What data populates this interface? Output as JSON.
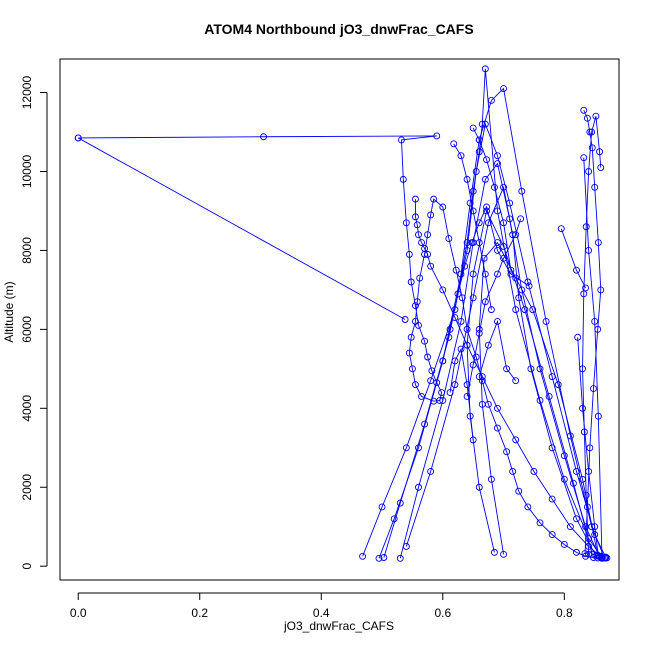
{
  "chart_data": {
    "type": "line",
    "title": "ATOM4 Northbound jO3_dnwFrac_CAFS",
    "xlabel": "jO3_dnwFrac_CAFS",
    "ylabel": "Altitude (m)",
    "xlim": [
      -0.03,
      0.89
    ],
    "ylim": [
      -350,
      12850
    ],
    "xticks": [
      0.0,
      0.2,
      0.4,
      0.6,
      0.8
    ],
    "xtick_labels": [
      "0.0",
      "0.2",
      "0.4",
      "0.6",
      "0.8"
    ],
    "yticks": [
      0,
      2000,
      4000,
      6000,
      8000,
      10000,
      12000
    ],
    "ytick_labels": [
      "0",
      "2000",
      "4000",
      "6000",
      "8000",
      "10000",
      "12000"
    ],
    "grid": false,
    "line_color": "#0000ff",
    "marker": "open-circle",
    "series": [
      {
        "x": [
          0.0,
          0.305,
          0.59,
          0.532,
          0.535,
          0.54,
          0.545,
          0.548,
          0.555,
          0.56,
          0.57,
          0.575,
          0.582,
          0.59,
          0.598,
          0.595,
          0.585,
          0.565,
          0.555,
          0.55,
          0.545,
          0.548,
          0.555,
          0.558,
          0.562,
          0.57,
          0.575,
          0.58,
          0.585,
          0.6,
          0.61,
          0.622,
          0.632,
          0.64,
          0.655,
          0.665,
          0.675,
          0.69,
          0.705,
          0.715,
          0.725,
          0.74,
          0.76,
          0.78,
          0.8,
          0.82,
          0.835,
          0.848,
          0.855,
          0.862,
          0.87
        ],
        "y": [
          10850,
          10880,
          10900,
          10800,
          9800,
          8700,
          7900,
          7200,
          6600,
          6100,
          5700,
          5300,
          4950,
          4650,
          4400,
          4200,
          4180,
          4300,
          4600,
          5000,
          5400,
          5800,
          6200,
          6700,
          7300,
          7900,
          8400,
          8900,
          9300,
          9100,
          8300,
          7500,
          6800,
          6000,
          5300,
          4700,
          4100,
          3500,
          2900,
          2400,
          1900,
          1500,
          1100,
          800,
          550,
          350,
          250,
          220,
          210,
          205,
          210
        ]
      },
      {
        "x": [
          0.0,
          0.538
        ],
        "y": [
          10850,
          6250
        ]
      },
      {
        "x": [
          0.555,
          0.555,
          0.558,
          0.56,
          0.565,
          0.57,
          0.575,
          0.58,
          0.6,
          0.62,
          0.64,
          0.665,
          0.69,
          0.72,
          0.75,
          0.78,
          0.81,
          0.84,
          0.86,
          0.868
        ],
        "y": [
          9300,
          8850,
          8650,
          8400,
          8200,
          8050,
          7900,
          7600,
          7000,
          6300,
          5600,
          4800,
          4000,
          3200,
          2400,
          1700,
          1000,
          500,
          250,
          210
        ]
      },
      {
        "x": [
          0.468,
          0.5,
          0.54,
          0.58,
          0.62,
          0.64,
          0.65,
          0.66,
          0.665,
          0.67,
          0.69,
          0.72,
          0.76,
          0.8,
          0.84,
          0.862
        ],
        "y": [
          250,
          1500,
          3000,
          4700,
          6500,
          8200,
          9500,
          10500,
          11200,
          12600,
          9000,
          6500,
          4200,
          2200,
          700,
          220
        ]
      },
      {
        "x": [
          0.495,
          0.52,
          0.56,
          0.6,
          0.63,
          0.645,
          0.66,
          0.68,
          0.7,
          0.73,
          0.77,
          0.81,
          0.845,
          0.866
        ],
        "y": [
          200,
          1200,
          3000,
          5200,
          7400,
          9200,
          10800,
          11800,
          12100,
          9500,
          6200,
          3300,
          1000,
          210
        ]
      },
      {
        "x": [
          0.503,
          0.53,
          0.57,
          0.61,
          0.64,
          0.655,
          0.67,
          0.69,
          0.71,
          0.74,
          0.78,
          0.82,
          0.85,
          0.868
        ],
        "y": [
          220,
          1600,
          3600,
          5800,
          8000,
          10000,
          11200,
          10400,
          9200,
          7200,
          4800,
          2400,
          800,
          230
        ]
      },
      {
        "x": [
          0.53,
          0.56,
          0.6,
          0.63,
          0.65,
          0.67,
          0.69,
          0.71,
          0.73,
          0.76,
          0.8,
          0.835,
          0.858
        ],
        "y": [
          200,
          2000,
          4200,
          6200,
          8200,
          9800,
          10200,
          8800,
          7000,
          5000,
          2800,
          1000,
          240
        ]
      },
      {
        "x": [
          0.54,
          0.58,
          0.62,
          0.65,
          0.675,
          0.7,
          0.715,
          0.725,
          0.745,
          0.78,
          0.82,
          0.852
        ],
        "y": [
          500,
          2400,
          4600,
          6800,
          8700,
          9600,
          8400,
          6800,
          5000,
          3000,
          1200,
          260
        ]
      },
      {
        "x": [
          0.685,
          0.66,
          0.645,
          0.64,
          0.65,
          0.672,
          0.7,
          0.735,
          0.775,
          0.815,
          0.846
        ],
        "y": [
          350,
          2000,
          3800,
          5600,
          7400,
          9000,
          8100,
          6500,
          4300,
          2100,
          300
        ]
      },
      {
        "x": [
          0.7,
          0.68,
          0.665,
          0.66,
          0.668,
          0.69,
          0.72,
          0.748,
          0.79,
          0.83,
          0.855
        ],
        "y": [
          300,
          2200,
          4100,
          6000,
          7800,
          8200,
          7300,
          6500,
          4600,
          2200,
          280
        ]
      },
      {
        "x": [
          0.84,
          0.836,
          0.833,
          0.83,
          0.832,
          0.836,
          0.84,
          0.845,
          0.852,
          0.858,
          0.86
        ],
        "y": [
          300,
          1800,
          3400,
          5000,
          6900,
          8600,
          10000,
          11000,
          11400,
          10500,
          10100
        ]
      },
      {
        "x": [
          0.832,
          0.838,
          0.842,
          0.846,
          0.85,
          0.856,
          0.86,
          0.855,
          0.848,
          0.842,
          0.838,
          0.834
        ],
        "y": [
          11550,
          11350,
          11000,
          10600,
          9600,
          8200,
          7000,
          6000,
          4500,
          3000,
          1500,
          320
        ]
      },
      {
        "x": [
          0.832,
          0.84,
          0.85,
          0.856,
          0.862
        ],
        "y": [
          10350,
          8000,
          6200,
          3800,
          200
        ]
      },
      {
        "x": [
          0.795,
          0.82,
          0.835
        ],
        "y": [
          8550,
          7500,
          7050
        ]
      },
      {
        "x": [
          0.822,
          0.83,
          0.84,
          0.85,
          0.856
        ],
        "y": [
          5800,
          4000,
          2400,
          1000,
          260
        ]
      },
      {
        "x": [
          0.64,
          0.65,
          0.66,
          0.67,
          0.69,
          0.7,
          0.72,
          0.728
        ],
        "y": [
          4300,
          5100,
          5900,
          6700,
          7400,
          7800,
          8400,
          8800
        ]
      },
      {
        "x": [
          0.612,
          0.62,
          0.63,
          0.64,
          0.65
        ],
        "y": [
          4400,
          5200,
          5500,
          4600,
          3200
        ]
      },
      {
        "x": [
          0.66,
          0.675,
          0.69,
          0.705,
          0.72
        ],
        "y": [
          4800,
          5600,
          6200,
          5000,
          4700
        ]
      },
      {
        "x": [
          0.618,
          0.63,
          0.64,
          0.65,
          0.66,
          0.67,
          0.68
        ],
        "y": [
          10700,
          10400,
          9800,
          9000,
          8200,
          7400,
          6500
        ]
      },
      {
        "x": [
          0.65,
          0.66,
          0.672,
          0.685,
          0.7,
          0.712
        ],
        "y": [
          11100,
          10800,
          10300,
          9600,
          8700,
          7500
        ]
      },
      {
        "x": [
          0.6,
          0.612,
          0.625,
          0.636,
          0.648,
          0.66,
          0.672,
          0.69,
          0.712,
          0.742
        ],
        "y": [
          5200,
          6000,
          6900,
          7600,
          8200,
          8700,
          9100,
          8000,
          7400,
          7100
        ]
      }
    ]
  }
}
